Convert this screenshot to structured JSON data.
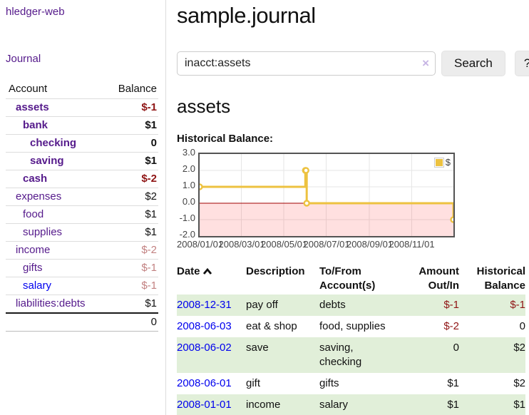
{
  "app": {
    "title": "hledger-web",
    "nav_journal": "Journal"
  },
  "colors": {
    "link_purple": "#551a8b",
    "link_blue": "#0000ee",
    "negative_strong": "#8f1414",
    "negative_soft": "#c28181",
    "row_green": "#e1efd9",
    "series_gold": "#edc240",
    "negative_region_pink": "rgba(255,0,0,0.12)",
    "zero_line_red": "#a00000",
    "chart_border_gray": "#545454"
  },
  "sidebar": {
    "accounts_header": {
      "account": "Account",
      "balance": "Balance"
    },
    "accounts": [
      {
        "name": "assets",
        "depth": 1,
        "bold": true,
        "balance": "$-1"
      },
      {
        "name": "bank",
        "depth": 2,
        "bold": true,
        "balance": "$1"
      },
      {
        "name": "checking",
        "depth": 3,
        "bold": true,
        "balance": "0"
      },
      {
        "name": "saving",
        "depth": 3,
        "bold": true,
        "balance": "$1"
      },
      {
        "name": "cash",
        "depth": 2,
        "bold": true,
        "balance": "$-2"
      },
      {
        "name": "expenses",
        "depth": 1,
        "bold": false,
        "balance": "$2"
      },
      {
        "name": "food",
        "depth": 2,
        "bold": false,
        "balance": "$1"
      },
      {
        "name": "supplies",
        "depth": 2,
        "bold": false,
        "balance": "$1"
      },
      {
        "name": "income",
        "depth": 1,
        "bold": false,
        "balance": "$-2"
      },
      {
        "name": "gifts",
        "depth": 2,
        "bold": false,
        "balance": "$-1"
      },
      {
        "name": "salary",
        "depth": 2,
        "bold": false,
        "balance": "$-1",
        "unvisited": true
      },
      {
        "name": "liabilities:debts",
        "depth": 1,
        "bold": false,
        "balance": "$1"
      }
    ],
    "total": "0"
  },
  "header": {
    "title": "sample.journal"
  },
  "search": {
    "value": "inacct:assets",
    "clear_icon": "×",
    "button": "Search",
    "help_button": "?"
  },
  "account_page": {
    "heading": "assets",
    "chart_label": "Historical Balance:"
  },
  "chart_data": {
    "type": "line",
    "step": true,
    "title": "Historical Balance:",
    "x_type": "date",
    "x_range": [
      "2008-01-01",
      "2008-12-31"
    ],
    "ylim": [
      -2,
      3
    ],
    "y_ticks": [
      3.0,
      2.0,
      1.0,
      0.0,
      -1.0,
      -2.0
    ],
    "x_tick_dates": [
      "2008-01-01",
      "2008-03-01",
      "2008-05-01",
      "2008-07-01",
      "2008-09-01",
      "2008-11-01"
    ],
    "x_tick_labels": [
      "2008/01/01",
      "2008/03/01",
      "2008/05/01",
      "2008/07/01",
      "2008/09/01",
      "2008/11/01"
    ],
    "grid": true,
    "legend_position": "top-right",
    "negative_region_shaded": true,
    "series": [
      {
        "name": "$",
        "x": [
          "2008-01-01",
          "2008-06-01",
          "2008-06-02",
          "2008-06-03",
          "2008-12-31"
        ],
        "y": [
          1,
          2,
          2,
          0,
          -1
        ]
      }
    ]
  },
  "register": {
    "headers": {
      "date": "Date",
      "description": "Description",
      "accounts": "To/From Account(s)",
      "amount": "Amount Out/In",
      "balance": "Historical Balance"
    },
    "rows": [
      {
        "date": "2008-12-31",
        "description": "pay off",
        "accounts": "debts",
        "amount": "$-1",
        "balance": "$-1"
      },
      {
        "date": "2008-06-03",
        "description": "eat & shop",
        "accounts": "food, supplies",
        "amount": "$-2",
        "balance": "0"
      },
      {
        "date": "2008-06-02",
        "description": "save",
        "accounts": "saving, checking",
        "amount": "0",
        "balance": "$2"
      },
      {
        "date": "2008-06-01",
        "description": "gift",
        "accounts": "gifts",
        "amount": "$1",
        "balance": "$2"
      },
      {
        "date": "2008-01-01",
        "description": "income",
        "accounts": "salary",
        "amount": "$1",
        "balance": "$1"
      }
    ]
  }
}
